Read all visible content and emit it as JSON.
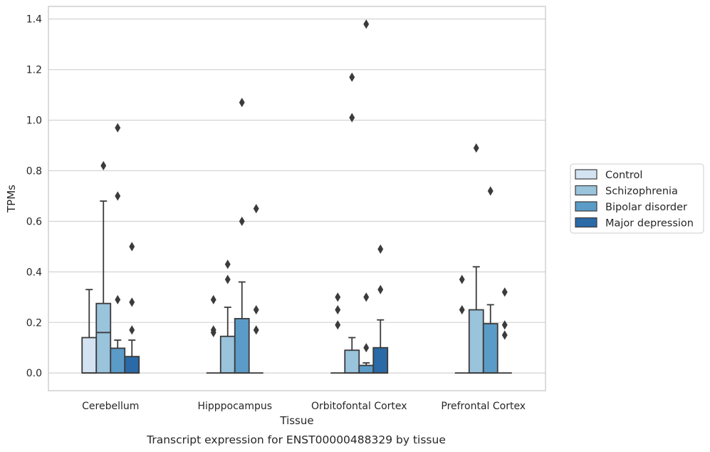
{
  "chart_data": {
    "type": "box",
    "caption": "Transcript expression for ENST00000488329 by tissue",
    "xlabel": "Tissue",
    "ylabel": "TPMs",
    "ylim": [
      -0.07,
      1.45
    ],
    "yticks": [
      0.0,
      0.2,
      0.4,
      0.6,
      0.8,
      1.0,
      1.2,
      1.4
    ],
    "ytick_labels": [
      "0.0",
      "0.2",
      "0.4",
      "0.6",
      "0.8",
      "1.0",
      "1.2",
      "1.4"
    ],
    "grid": "horizontal",
    "legend_position": "right",
    "categories": [
      "Cerebellum",
      "Hipppocampus",
      "Orbitofontal Cortex",
      "Prefrontal Cortex"
    ],
    "series": [
      {
        "name": "Control",
        "color": "#d4e3f1",
        "boxes": [
          {
            "q1": 0.0,
            "median": 0.0,
            "q3": 0.14,
            "whisker_low": 0.0,
            "whisker_high": 0.33,
            "outliers": []
          },
          {
            "q1": 0.0,
            "median": 0.0,
            "q3": 0.0,
            "whisker_low": 0.0,
            "whisker_high": 0.0,
            "outliers": [
              0.17,
              0.16,
              0.29
            ]
          },
          {
            "q1": 0.0,
            "median": 0.0,
            "q3": 0.0,
            "whisker_low": 0.0,
            "whisker_high": 0.0,
            "outliers": [
              0.19,
              0.25,
              0.3
            ]
          },
          {
            "q1": 0.0,
            "median": 0.0,
            "q3": 0.0,
            "whisker_low": 0.0,
            "whisker_high": 0.0,
            "outliers": [
              0.25,
              0.37
            ]
          }
        ]
      },
      {
        "name": "Schizophrenia",
        "color": "#9ac3dc",
        "boxes": [
          {
            "q1": 0.0,
            "median": 0.16,
            "q3": 0.275,
            "whisker_low": 0.0,
            "whisker_high": 0.68,
            "outliers": [
              0.82
            ]
          },
          {
            "q1": 0.0,
            "median": 0.0,
            "q3": 0.145,
            "whisker_low": 0.0,
            "whisker_high": 0.26,
            "outliers": [
              0.37,
              0.43
            ]
          },
          {
            "q1": 0.0,
            "median": 0.0,
            "q3": 0.09,
            "whisker_low": 0.0,
            "whisker_high": 0.14,
            "outliers": [
              1.01,
              1.17
            ]
          },
          {
            "q1": 0.0,
            "median": 0.0,
            "q3": 0.25,
            "whisker_low": 0.0,
            "whisker_high": 0.42,
            "outliers": [
              0.89
            ]
          }
        ]
      },
      {
        "name": "Bipolar disorder",
        "color": "#5b9bc7",
        "boxes": [
          {
            "q1": 0.0,
            "median": 0.0,
            "q3": 0.098,
            "whisker_low": 0.0,
            "whisker_high": 0.13,
            "outliers": [
              0.29,
              0.7,
              0.97
            ]
          },
          {
            "q1": 0.0,
            "median": 0.0,
            "q3": 0.215,
            "whisker_low": 0.0,
            "whisker_high": 0.36,
            "outliers": [
              0.6,
              1.07
            ]
          },
          {
            "q1": 0.0,
            "median": 0.0,
            "q3": 0.03,
            "whisker_low": 0.0,
            "whisker_high": 0.04,
            "outliers": [
              0.1,
              0.3,
              1.38
            ]
          },
          {
            "q1": 0.0,
            "median": 0.0,
            "q3": 0.195,
            "whisker_low": 0.0,
            "whisker_high": 0.27,
            "outliers": [
              0.72
            ]
          }
        ]
      },
      {
        "name": "Major depression",
        "color": "#2a6aa6",
        "boxes": [
          {
            "q1": 0.0,
            "median": 0.0,
            "q3": 0.065,
            "whisker_low": 0.0,
            "whisker_high": 0.13,
            "outliers": [
              0.17,
              0.28,
              0.5
            ]
          },
          {
            "q1": 0.0,
            "median": 0.0,
            "q3": 0.0,
            "whisker_low": 0.0,
            "whisker_high": 0.0,
            "outliers": [
              0.17,
              0.25,
              0.65
            ]
          },
          {
            "q1": 0.0,
            "median": 0.0,
            "q3": 0.1,
            "whisker_low": 0.0,
            "whisker_high": 0.21,
            "outliers": [
              0.33,
              0.49
            ]
          },
          {
            "q1": 0.0,
            "median": 0.0,
            "q3": 0.0,
            "whisker_low": 0.0,
            "whisker_high": 0.0,
            "outliers": [
              0.15,
              0.19,
              0.32
            ]
          }
        ]
      }
    ]
  }
}
